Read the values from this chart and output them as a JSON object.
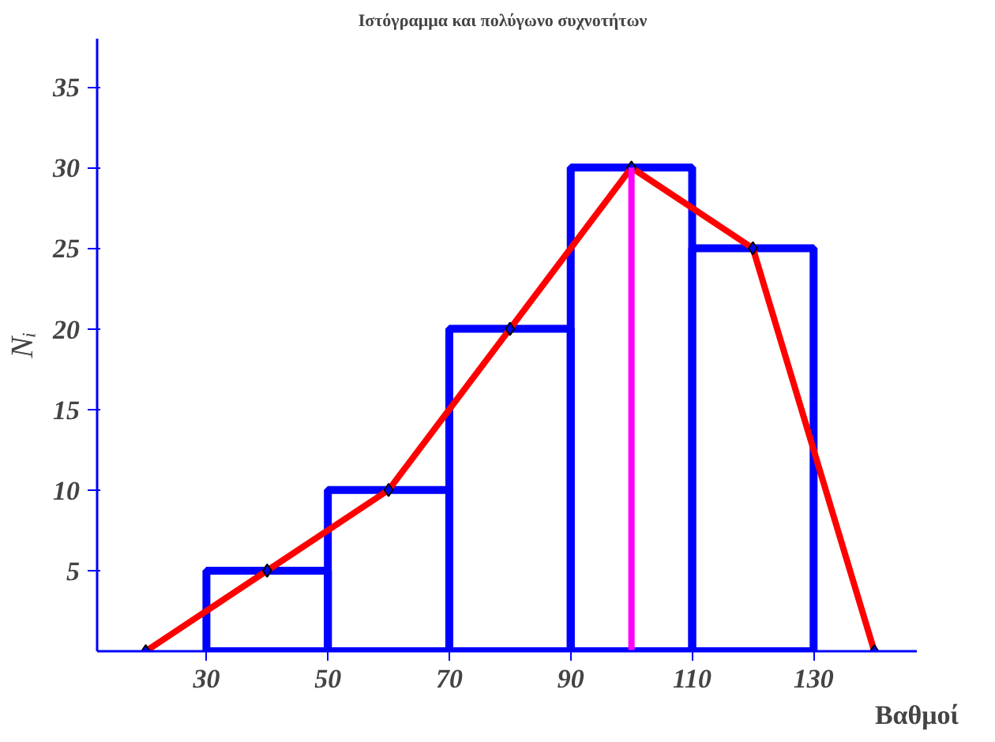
{
  "chart_data": {
    "type": "histogram",
    "title": "Ιστόγραμμα  και πολύγωνο  συχνοτήτων",
    "xlabel": "Βαθμοί",
    "ylabel": "Nᵢ",
    "bins": [
      30,
      50,
      70,
      90,
      110,
      130
    ],
    "values": [
      5,
      10,
      20,
      30,
      25
    ],
    "color": "#0000ff",
    "series": [
      {
        "type": "line",
        "x": [
          20,
          40,
          60,
          80,
          100,
          120,
          140
        ],
        "values": [
          0,
          5,
          10,
          20,
          30,
          25,
          0
        ],
        "color": "#ff0000",
        "marker": "diamond"
      },
      {
        "type": "line",
        "x": [
          100,
          100
        ],
        "values": [
          0,
          30
        ],
        "color": "#ff00ff"
      }
    ],
    "xlim": [
      12,
      147
    ],
    "ylim": [
      0,
      38
    ],
    "xticks": [
      30,
      50,
      70,
      90,
      110,
      130
    ],
    "yticks": [
      5,
      10,
      15,
      20,
      25,
      30,
      35
    ],
    "grid": false
  }
}
